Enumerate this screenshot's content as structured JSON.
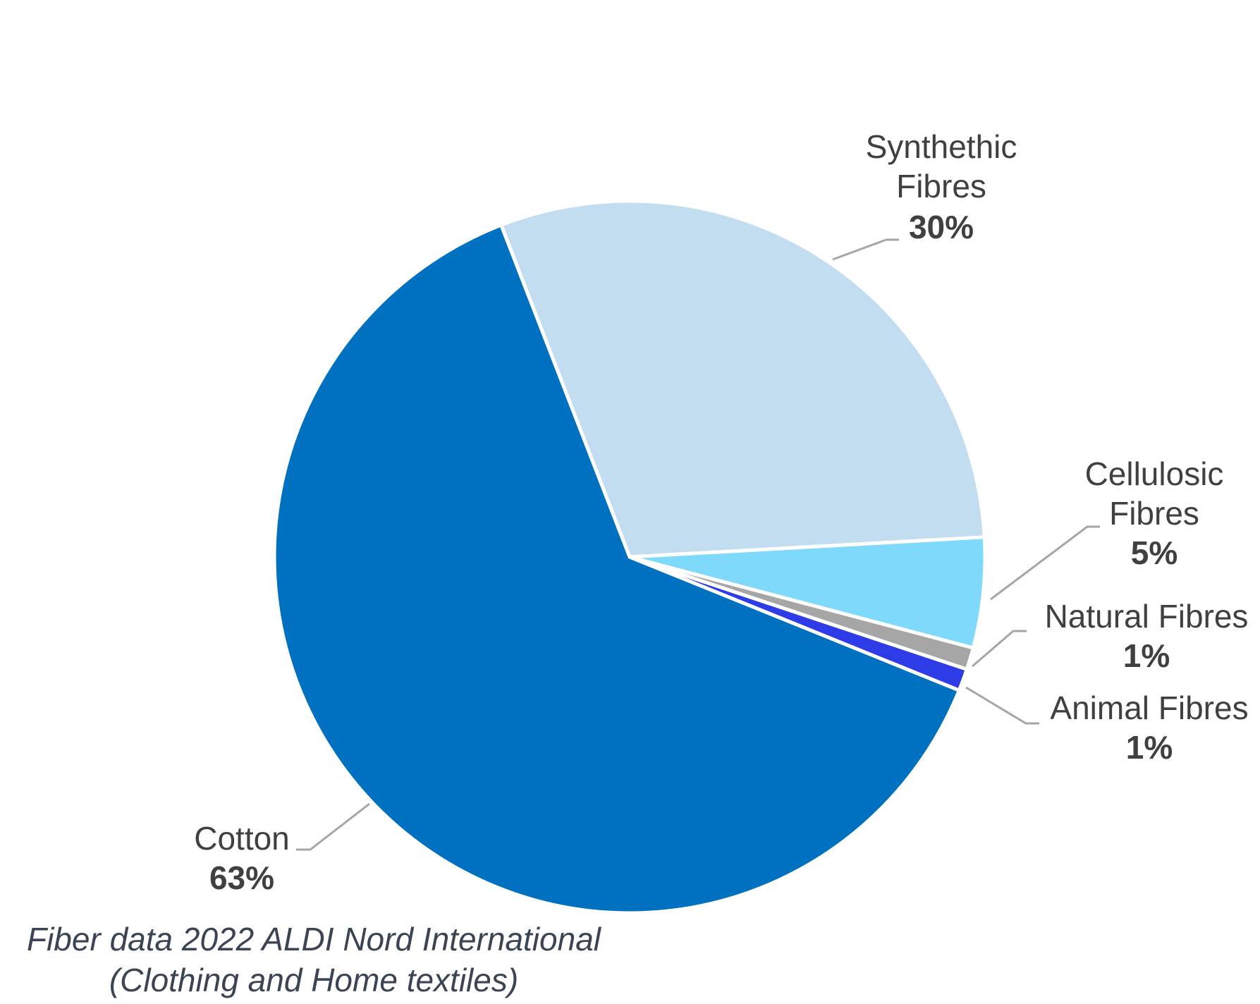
{
  "chart_data": {
    "type": "pie",
    "slices": [
      {
        "name": [
          "Synthethic",
          "Fibres"
        ],
        "value": 30,
        "value_label": "30%",
        "color": "#c3ddf0"
      },
      {
        "name": [
          "Cellulosic",
          "Fibres"
        ],
        "value": 5,
        "value_label": "5%",
        "color": "#7ed9fb"
      },
      {
        "name": [
          "Natural Fibres"
        ],
        "value": 1,
        "value_label": "1%",
        "color": "#a6a6a6"
      },
      {
        "name": [
          "Animal Fibres"
        ],
        "value": 1,
        "value_label": "1%",
        "color": "#2e3ce8"
      },
      {
        "name": [
          "Cotton"
        ],
        "value": 63,
        "value_label": "63%",
        "color": "#0070c0"
      }
    ],
    "caption": [
      "Fiber data 2022 ALDI Nord International",
      "(Clothing and Home textiles)"
    ]
  }
}
